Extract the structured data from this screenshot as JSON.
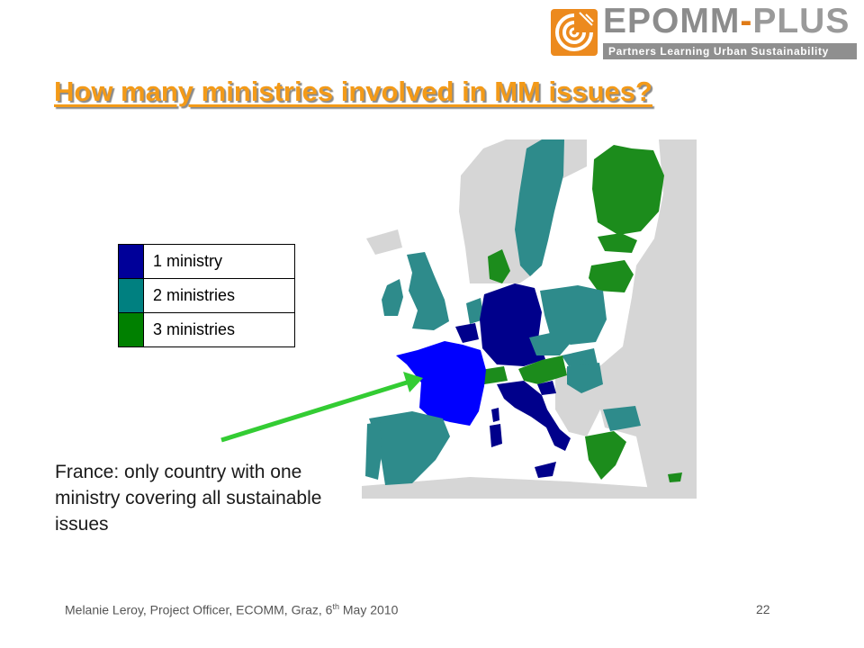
{
  "logo": {
    "word_part1": "EPOMM",
    "separator": "-",
    "word_part2": "PLUS",
    "tagline": "Partners Learning Urban Sustainability"
  },
  "title": "How many ministries involved in MM issues?",
  "legend": [
    {
      "label": "1 ministry",
      "color": "#000099"
    },
    {
      "label": "2 ministries",
      "color": "#008080"
    },
    {
      "label": "3 ministries",
      "color": "#008000"
    }
  ],
  "map": {
    "colors": {
      "one_ministry": "#00008b",
      "france": "#0000ff",
      "two_ministries": "#2e8b8b",
      "three_ministries": "#1c8c1c",
      "other_land": "#d6d6d6",
      "sea": "#ffffff"
    }
  },
  "annotation": "France: only country with one ministry covering all sustainable issues",
  "footer": {
    "text_before": "Melanie Leroy, Project Officer, ECOMM, Graz, 6",
    "superscript": "th",
    "text_after": " May 2010",
    "page_number": "22"
  }
}
